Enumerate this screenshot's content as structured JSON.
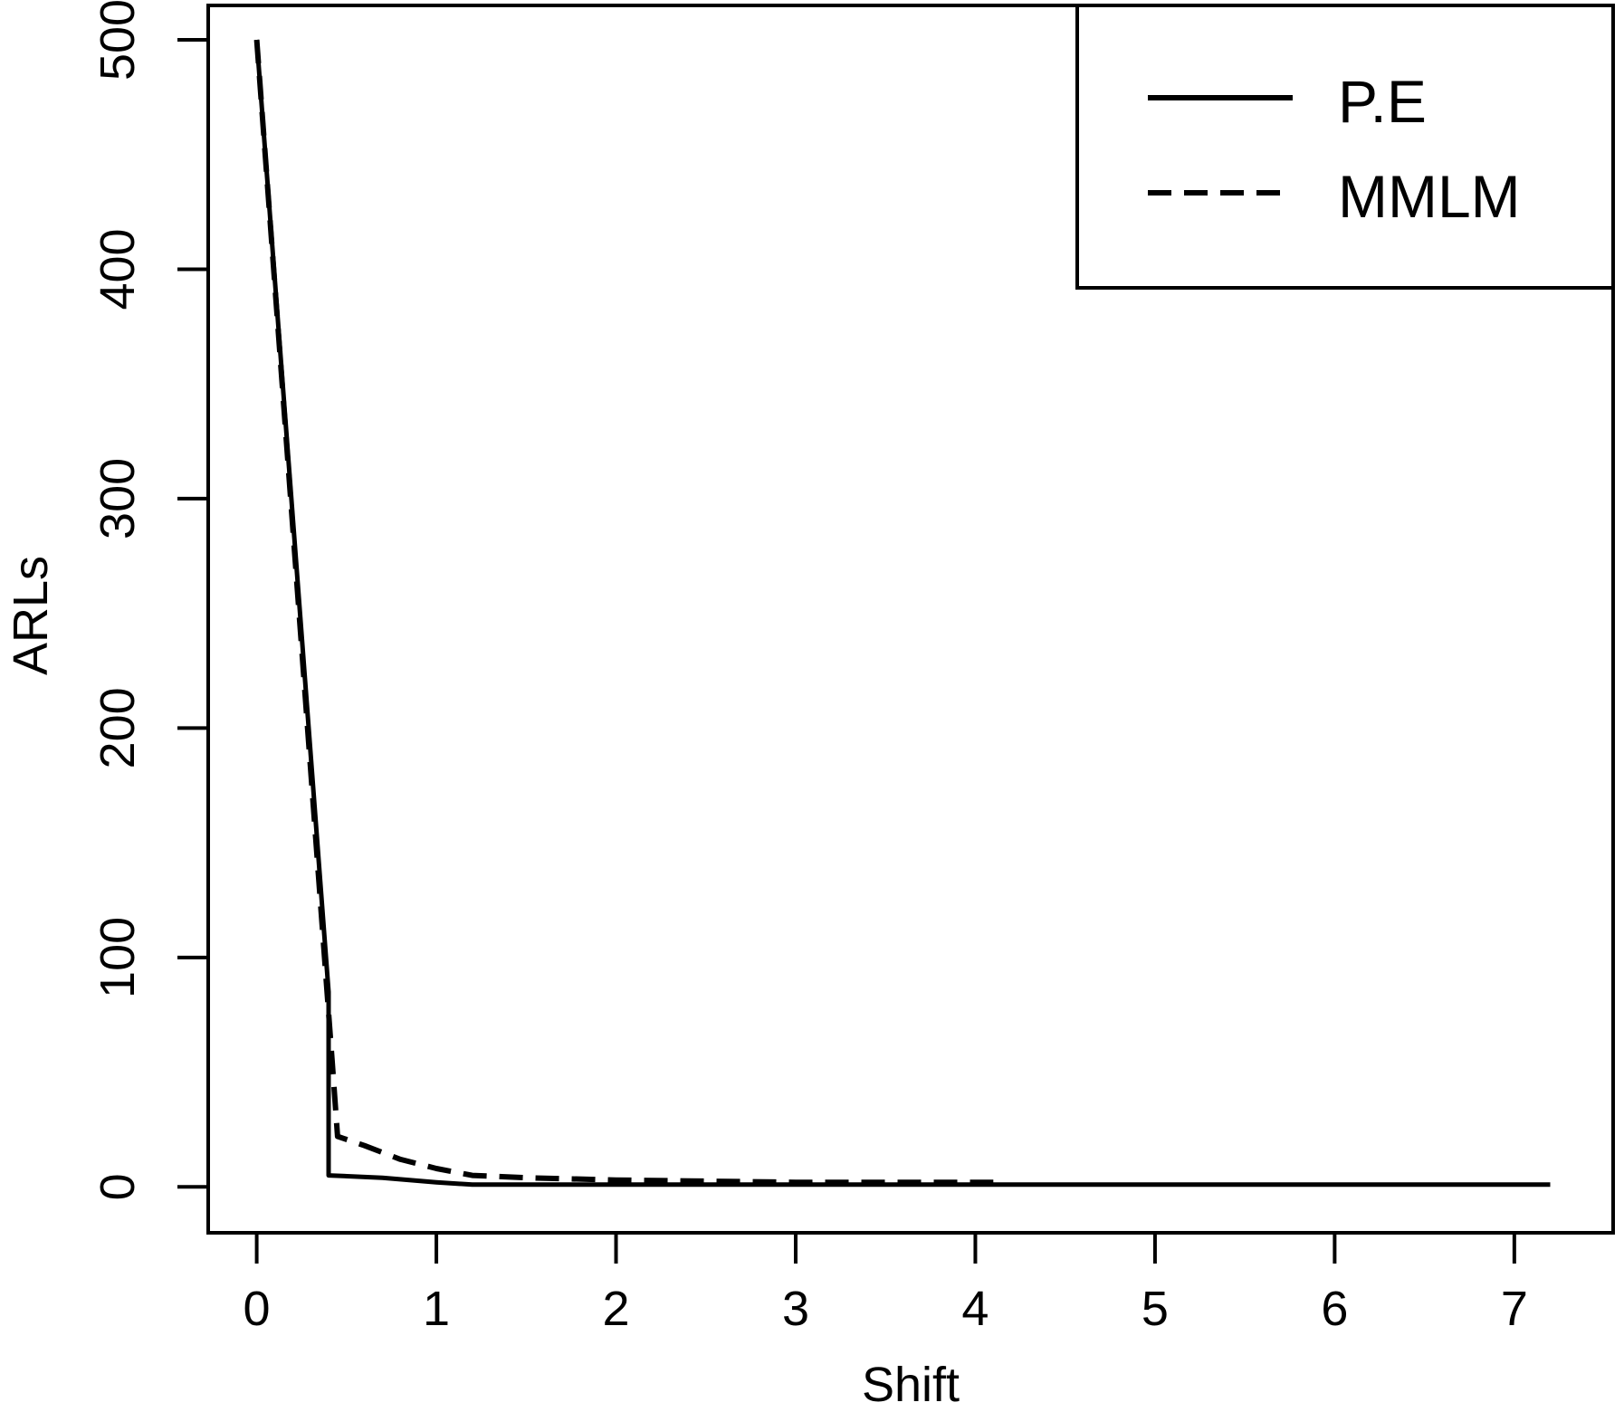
{
  "chart_data": {
    "type": "line",
    "xlabel": "Shift",
    "ylabel": "ARLs",
    "xlim": [
      -0.27,
      7.55
    ],
    "ylim": [
      -20,
      515
    ],
    "x_ticks": [
      0,
      1,
      2,
      3,
      4,
      5,
      6,
      7
    ],
    "y_ticks": [
      0,
      100,
      200,
      300,
      400,
      500
    ],
    "x_tick_labels": [
      "0",
      "1",
      "2",
      "3",
      "4",
      "5",
      "6",
      "7"
    ],
    "y_tick_labels": [
      "0",
      "100",
      "200",
      "300",
      "400",
      "500"
    ],
    "grid": false,
    "legend_position": "top-right",
    "series": [
      {
        "name": "P.E",
        "dash": "solid",
        "x": [
          0.0,
          0.4,
          0.4,
          0.7,
          1.0,
          1.2,
          1.5,
          2.0,
          3.0,
          4.0,
          5.0,
          6.0,
          7.2
        ],
        "y": [
          500,
          85,
          5,
          4,
          2,
          1,
          1,
          1,
          1,
          1,
          1,
          1,
          1
        ]
      },
      {
        "name": "MMLM",
        "dash": "dashed",
        "x": [
          0.0,
          0.42,
          0.45,
          0.6,
          0.8,
          1.0,
          1.2,
          1.5,
          2.0,
          3.0,
          4.1
        ],
        "y": [
          500,
          55,
          22,
          18,
          12,
          8,
          5,
          4,
          3,
          2,
          2
        ]
      }
    ]
  }
}
